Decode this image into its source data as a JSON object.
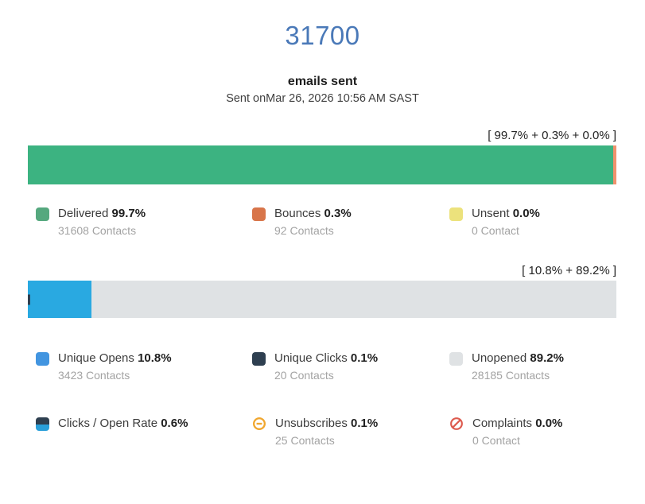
{
  "header": {
    "total_emails": "31700",
    "title": "emails sent",
    "subtitle": "Sent onMar 26, 2026 10:56 AM SAST"
  },
  "delivery_chart": {
    "bracket_label": "[ 99.7% + 0.3% + 0.0% ]",
    "segments": [
      {
        "name": "delivered",
        "percent": 99.7,
        "color": "#3cb381"
      },
      {
        "name": "bounces",
        "percent": 0.3,
        "color": "#f0926e"
      },
      {
        "name": "unsent",
        "percent": 0.0,
        "color": "#ece27c"
      }
    ],
    "legend": [
      {
        "label": "Delivered",
        "percent": "99.7%",
        "contacts": "31608 Contacts",
        "color": "#55a87e"
      },
      {
        "label": "Bounces",
        "percent": "0.3%",
        "contacts": "92 Contacts",
        "color": "#d8754a"
      },
      {
        "label": "Unsent",
        "percent": "0.0%",
        "contacts": "0 Contact",
        "color": "#ece27c"
      }
    ]
  },
  "engagement_chart": {
    "bracket_label": "[ 10.8% + 89.2% ]",
    "segments": [
      {
        "name": "unique-clicks",
        "percent": 0.1,
        "color": "#2e3f50"
      },
      {
        "name": "unique-opens",
        "percent": 10.8,
        "color": "#29a9e1"
      },
      {
        "name": "unopened",
        "percent": 89.2,
        "color": "#dfe2e4"
      }
    ],
    "legend_row1": [
      {
        "label": "Unique Opens",
        "percent": "10.8%",
        "contacts": "3423 Contacts",
        "color": "#4295e0"
      },
      {
        "label": "Unique Clicks",
        "percent": "0.1%",
        "contacts": "20 Contacts",
        "color": "#2e3f50"
      },
      {
        "label": "Unopened",
        "percent": "89.2%",
        "contacts": "28185 Contacts",
        "color": "#dfe2e4"
      }
    ],
    "legend_row2": [
      {
        "label": "Clicks / Open Rate",
        "percent": "0.6%",
        "icon": "clicks-open-rate-swatch",
        "color_top": "#2e3f50",
        "color_bottom": "#2a9fd9"
      },
      {
        "label": "Unsubscribes",
        "percent": "0.1%",
        "contacts": "25 Contacts",
        "icon": "minus-circle-icon",
        "color": "#f0a72f"
      },
      {
        "label": "Complaints",
        "percent": "0.0%",
        "contacts": "0 Contact",
        "icon": "no-entry-icon",
        "color": "#dd5a4e"
      }
    ]
  },
  "accent_colors": {
    "big_number_blue": "#4a79b8"
  },
  "chart_data": [
    {
      "type": "bar",
      "stacked": true,
      "title": "emails sent",
      "total": 31700,
      "subtitle": "Sent onMar 26, 2026 10:56 AM SAST",
      "annotation": "[ 99.7% + 0.3% + 0.0% ]",
      "segments": [
        {
          "label": "Delivered",
          "percent": 99.7,
          "contacts": 31608
        },
        {
          "label": "Bounces",
          "percent": 0.3,
          "contacts": 92
        },
        {
          "label": "Unsent",
          "percent": 0.0,
          "contacts": 0
        }
      ],
      "xlim": [
        0,
        100
      ],
      "legend_position": "below"
    },
    {
      "type": "bar",
      "stacked": true,
      "annotation": "[ 10.8% + 89.2% ]",
      "segments": [
        {
          "label": "Unique Clicks",
          "percent": 0.1,
          "contacts": 20
        },
        {
          "label": "Unique Opens",
          "percent": 10.8,
          "contacts": 3423
        },
        {
          "label": "Unopened",
          "percent": 89.2,
          "contacts": 28185
        }
      ],
      "extra_metrics": [
        {
          "label": "Clicks / Open Rate",
          "percent": 0.6
        },
        {
          "label": "Unsubscribes",
          "percent": 0.1,
          "contacts": 25
        },
        {
          "label": "Complaints",
          "percent": 0.0,
          "contacts": 0
        }
      ],
      "xlim": [
        0,
        100
      ],
      "legend_position": "below"
    }
  ]
}
